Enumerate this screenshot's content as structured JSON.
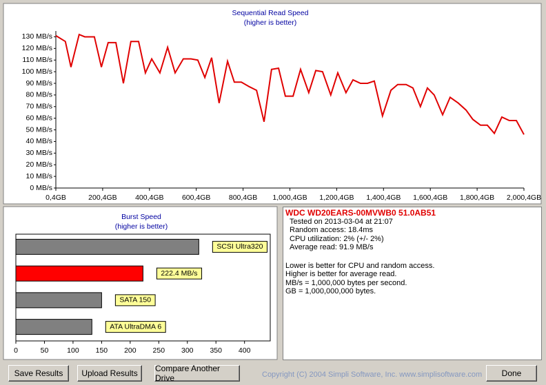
{
  "chart_data": [
    {
      "type": "line",
      "title": "Sequential Read Speed",
      "subtitle": "(higher is better)",
      "x": [
        0.4,
        41,
        65,
        100,
        124,
        165,
        195,
        224,
        257,
        289,
        321,
        354,
        383,
        410,
        445,
        478,
        510,
        545,
        578,
        607,
        637,
        666,
        698,
        734,
        763,
        793,
        828,
        858,
        890,
        922,
        952,
        981,
        1014,
        1046,
        1081,
        1111,
        1140,
        1175,
        1205,
        1240,
        1270,
        1302,
        1332,
        1361,
        1396,
        1432,
        1461,
        1497,
        1526,
        1558,
        1588,
        1617,
        1653,
        1685,
        1720,
        1753,
        1782,
        1815,
        1844,
        1874,
        1906,
        1938,
        1968,
        2000.4
      ],
      "values": [
        131,
        126,
        104,
        132,
        130,
        130,
        104,
        125,
        125,
        90,
        126,
        126,
        99,
        111,
        99,
        121,
        99,
        111,
        111,
        110,
        95,
        112,
        73,
        109,
        91,
        91,
        87,
        84,
        57,
        102,
        103,
        79,
        79,
        102,
        82,
        101,
        100,
        80,
        99,
        82,
        93,
        90,
        90,
        92,
        62,
        84,
        89,
        89,
        86,
        70,
        86,
        80,
        63,
        78,
        73,
        67,
        59,
        54,
        54,
        47,
        61,
        58,
        58,
        46
      ],
      "color": "#e00000",
      "xlim": [
        0.4,
        2000.4
      ],
      "xticks": [
        {
          "value": 0.4,
          "label": "0,4GB"
        },
        {
          "value": 200.4,
          "label": "200,4GB"
        },
        {
          "value": 400.4,
          "label": "400,4GB"
        },
        {
          "value": 600.4,
          "label": "600,4GB"
        },
        {
          "value": 800.4,
          "label": "800,4GB"
        },
        {
          "value": 1000.4,
          "label": "1,000,4GB"
        },
        {
          "value": 1200.4,
          "label": "1,200,4GB"
        },
        {
          "value": 1400.4,
          "label": "1,400,4GB"
        },
        {
          "value": 1600.4,
          "label": "1,600,4GB"
        },
        {
          "value": 1800.4,
          "label": "1,800,4GB"
        },
        {
          "value": 2000.4,
          "label": "2,000,4GB"
        }
      ],
      "ylim": [
        0,
        135
      ],
      "yticks": [
        {
          "value": 0,
          "label": "0 MB/s"
        },
        {
          "value": 10,
          "label": "10 MB/s"
        },
        {
          "value": 20,
          "label": "20 MB/s"
        },
        {
          "value": 30,
          "label": "30 MB/s"
        },
        {
          "value": 40,
          "label": "40 MB/s"
        },
        {
          "value": 50,
          "label": "50 MB/s"
        },
        {
          "value": 60,
          "label": "60 MB/s"
        },
        {
          "value": 70,
          "label": "70 MB/s"
        },
        {
          "value": 80,
          "label": "80 MB/s"
        },
        {
          "value": 90,
          "label": "90 MB/s"
        },
        {
          "value": 100,
          "label": "100 MB/s"
        },
        {
          "value": 110,
          "label": "110 MB/s"
        },
        {
          "value": 120,
          "label": "120 MB/s"
        },
        {
          "value": 130,
          "label": "130 MB/s"
        }
      ],
      "grid": false
    },
    {
      "type": "hbar",
      "title": "Burst Speed",
      "subtitle": "(higher is better)",
      "categories": [
        "SCSI Ultra320",
        "222.4 MB/s",
        "SATA 150",
        "ATA UltraDMA 6"
      ],
      "values": [
        320,
        222.4,
        150,
        133
      ],
      "colors": [
        "#808080",
        "#ff0000",
        "#808080",
        "#808080"
      ],
      "xlim": [
        0,
        445
      ],
      "xticks": [
        0,
        50,
        100,
        150,
        200,
        250,
        300,
        350,
        400
      ]
    }
  ],
  "drive_info": {
    "name": "WDC WD20EARS-00MVWB0 51.0AB51",
    "stats": [
      "Tested on 2013-03-04 at 21:07",
      "Random access: 18.4ms",
      "CPU utilization: 2% (+/- 2%)",
      "Average read: 91.9 MB/s"
    ],
    "notes": [
      "Lower is better for CPU and random access.",
      "Higher is better for average read.",
      "MB/s = 1,000,000 bytes per second.",
      "GB = 1,000,000,000 bytes."
    ]
  },
  "buttons": [
    "Save Results",
    "Upload Results",
    "Compare Another Drive",
    "Done"
  ],
  "copyright": "Copyright (C) 2004 Simpli Software, Inc. www.simplisoftware.com"
}
